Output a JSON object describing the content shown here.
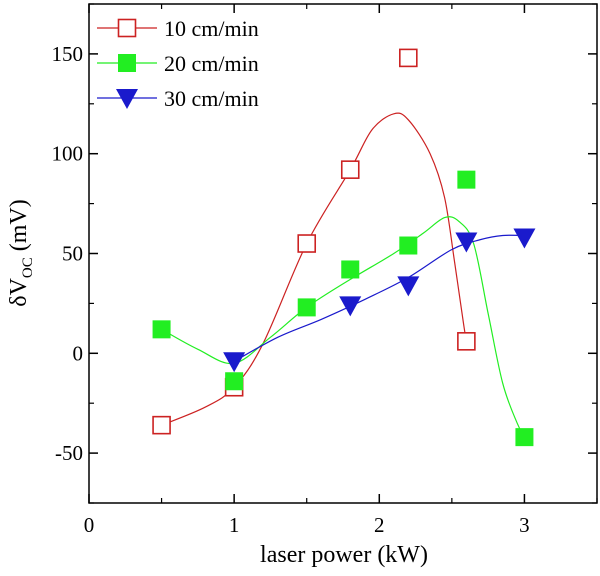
{
  "chart_data": {
    "type": "scatter",
    "title": "",
    "xlabel": "laser power (kW)",
    "ylabel": {
      "prefix": "δV",
      "subscript": "OC",
      "suffix": " (mV)"
    },
    "xlim": [
      0,
      3.5
    ],
    "ylim": [
      -75,
      175
    ],
    "x_ticks": [
      0,
      1,
      2,
      3
    ],
    "x_tick_labels": [
      "0",
      "1",
      "2",
      "3"
    ],
    "x_minor_ticks": [
      0.5,
      1.5,
      2.5,
      3.5
    ],
    "y_ticks": [
      -50,
      0,
      50,
      100,
      150
    ],
    "y_tick_labels": [
      "-50",
      "0",
      "50",
      "100",
      "150"
    ],
    "y_minor_ticks": [
      -75,
      -25,
      25,
      75,
      125,
      175
    ],
    "grid": false,
    "legend_position": "top-left",
    "series": [
      {
        "name": "10 cm/min",
        "color": "#cc2222",
        "marker": "open-square",
        "points": [
          [
            0.5,
            -36
          ],
          [
            1.0,
            -17
          ],
          [
            1.5,
            55
          ],
          [
            1.8,
            92
          ],
          [
            2.2,
            148
          ],
          [
            2.6,
            6
          ]
        ],
        "fit": [
          [
            0.5,
            -36
          ],
          [
            0.8,
            -27
          ],
          [
            1.0,
            -17
          ],
          [
            1.2,
            5
          ],
          [
            1.5,
            55
          ],
          [
            1.8,
            92
          ],
          [
            1.95,
            112
          ],
          [
            2.1,
            120
          ],
          [
            2.2,
            117
          ],
          [
            2.35,
            100
          ],
          [
            2.45,
            78
          ],
          [
            2.52,
            45
          ],
          [
            2.58,
            15
          ],
          [
            2.6,
            6
          ]
        ]
      },
      {
        "name": "20 cm/min",
        "color": "#22ee22",
        "marker": "filled-square",
        "points": [
          [
            0.5,
            12
          ],
          [
            1.0,
            -14
          ],
          [
            1.5,
            23
          ],
          [
            1.8,
            42
          ],
          [
            2.2,
            54
          ],
          [
            2.6,
            87
          ],
          [
            3.0,
            -42
          ]
        ],
        "fit": [
          [
            0.5,
            12
          ],
          [
            0.75,
            2
          ],
          [
            1.0,
            -5
          ],
          [
            1.25,
            8
          ],
          [
            1.5,
            23
          ],
          [
            1.8,
            37
          ],
          [
            2.1,
            50
          ],
          [
            2.3,
            60
          ],
          [
            2.45,
            68
          ],
          [
            2.55,
            66
          ],
          [
            2.65,
            55
          ],
          [
            2.75,
            20
          ],
          [
            2.85,
            -15
          ],
          [
            2.95,
            -35
          ],
          [
            3.0,
            -42
          ]
        ]
      },
      {
        "name": "30 cm/min",
        "color": "#1a1acc",
        "marker": "filled-triangle-down",
        "points": [
          [
            1.0,
            -4
          ],
          [
            1.8,
            24
          ],
          [
            2.2,
            34
          ],
          [
            2.6,
            56
          ],
          [
            3.0,
            58
          ]
        ],
        "fit": [
          [
            1.0,
            -4
          ],
          [
            1.3,
            8
          ],
          [
            1.6,
            17
          ],
          [
            1.9,
            27
          ],
          [
            2.2,
            38
          ],
          [
            2.5,
            52
          ],
          [
            2.7,
            57
          ],
          [
            2.85,
            59
          ],
          [
            3.0,
            59
          ]
        ]
      }
    ]
  }
}
